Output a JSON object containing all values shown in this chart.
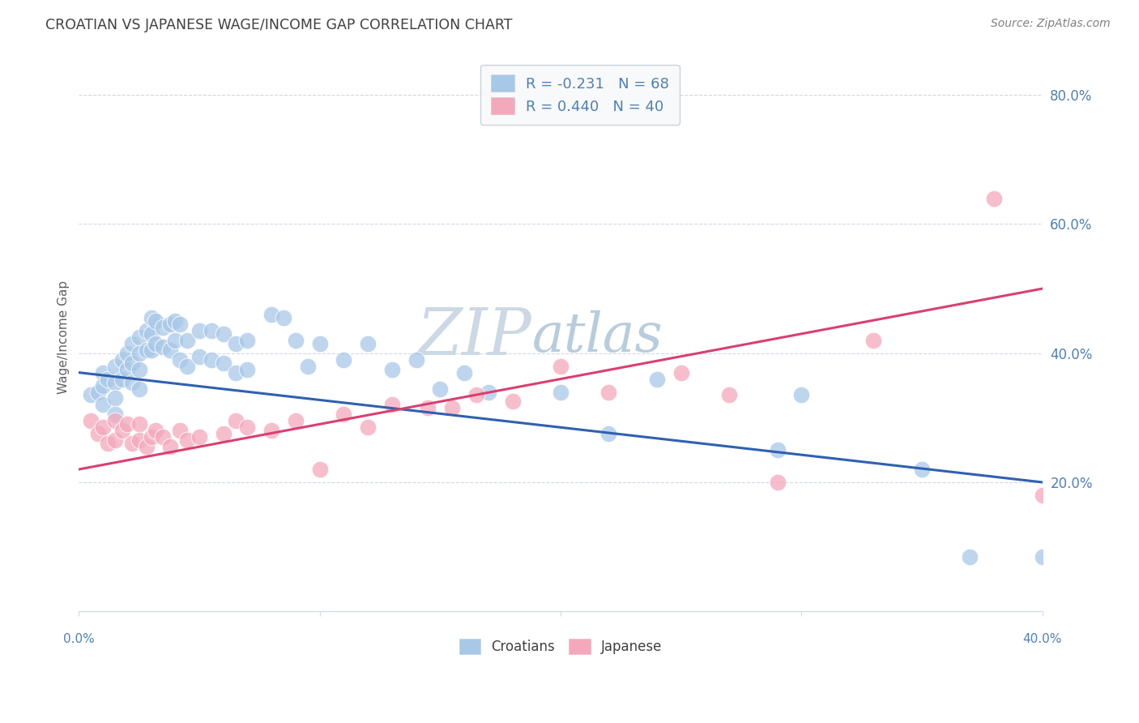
{
  "title": "CROATIAN VS JAPANESE WAGE/INCOME GAP CORRELATION CHART",
  "source": "Source: ZipAtlas.com",
  "ylabel": "Wage/Income Gap",
  "xmin": 0.0,
  "xmax": 0.4,
  "ymin": 0.0,
  "ymax": 0.85,
  "yticks": [
    0.2,
    0.4,
    0.6,
    0.8
  ],
  "ytick_labels": [
    "20.0%",
    "40.0%",
    "60.0%",
    "80.0%"
  ],
  "xtick_positions": [
    0.0,
    0.1,
    0.2,
    0.3,
    0.4
  ],
  "croatians_color": "#a8c8e8",
  "japanese_color": "#f4a8bc",
  "blue_line_color": "#3060b0",
  "pink_line_color": "#d84070",
  "watermark_text": "ZIPatlas",
  "watermark_color": "#dce8f0",
  "title_color": "#404040",
  "axis_label_color": "#5080b0",
  "grid_color": "#d0d8e8",
  "source_color": "#808080",
  "background_color": "#ffffff",
  "blue_line_y0": 0.37,
  "blue_line_y1": 0.2,
  "pink_line_y0": 0.22,
  "pink_line_y1": 0.5,
  "croatians_x": [
    0.005,
    0.008,
    0.01,
    0.01,
    0.01,
    0.012,
    0.015,
    0.015,
    0.015,
    0.015,
    0.018,
    0.018,
    0.02,
    0.02,
    0.022,
    0.022,
    0.022,
    0.025,
    0.025,
    0.025,
    0.025,
    0.028,
    0.028,
    0.03,
    0.03,
    0.03,
    0.032,
    0.032,
    0.035,
    0.035,
    0.038,
    0.038,
    0.04,
    0.04,
    0.042,
    0.042,
    0.045,
    0.045,
    0.05,
    0.05,
    0.055,
    0.055,
    0.06,
    0.06,
    0.065,
    0.065,
    0.07,
    0.07,
    0.08,
    0.085,
    0.09,
    0.095,
    0.1,
    0.11,
    0.12,
    0.13,
    0.14,
    0.15,
    0.16,
    0.17,
    0.2,
    0.22,
    0.24,
    0.29,
    0.3,
    0.35,
    0.37,
    0.4
  ],
  "croatians_y": [
    0.335,
    0.34,
    0.37,
    0.35,
    0.32,
    0.36,
    0.38,
    0.355,
    0.33,
    0.305,
    0.39,
    0.36,
    0.4,
    0.375,
    0.415,
    0.385,
    0.355,
    0.425,
    0.4,
    0.375,
    0.345,
    0.435,
    0.405,
    0.455,
    0.43,
    0.405,
    0.45,
    0.415,
    0.44,
    0.41,
    0.445,
    0.405,
    0.45,
    0.42,
    0.445,
    0.39,
    0.42,
    0.38,
    0.435,
    0.395,
    0.435,
    0.39,
    0.43,
    0.385,
    0.415,
    0.37,
    0.42,
    0.375,
    0.46,
    0.455,
    0.42,
    0.38,
    0.415,
    0.39,
    0.415,
    0.375,
    0.39,
    0.345,
    0.37,
    0.34,
    0.34,
    0.275,
    0.36,
    0.25,
    0.335,
    0.22,
    0.085,
    0.085
  ],
  "japanese_x": [
    0.005,
    0.008,
    0.01,
    0.012,
    0.015,
    0.015,
    0.018,
    0.02,
    0.022,
    0.025,
    0.025,
    0.028,
    0.03,
    0.032,
    0.035,
    0.038,
    0.042,
    0.045,
    0.05,
    0.06,
    0.065,
    0.07,
    0.08,
    0.09,
    0.1,
    0.11,
    0.12,
    0.13,
    0.145,
    0.155,
    0.165,
    0.18,
    0.2,
    0.22,
    0.25,
    0.27,
    0.29,
    0.33,
    0.38,
    0.4
  ],
  "japanese_y": [
    0.295,
    0.275,
    0.285,
    0.26,
    0.295,
    0.265,
    0.28,
    0.29,
    0.26,
    0.29,
    0.265,
    0.255,
    0.27,
    0.28,
    0.27,
    0.255,
    0.28,
    0.265,
    0.27,
    0.275,
    0.295,
    0.285,
    0.28,
    0.295,
    0.22,
    0.305,
    0.285,
    0.32,
    0.315,
    0.315,
    0.335,
    0.325,
    0.38,
    0.34,
    0.37,
    0.335,
    0.2,
    0.42,
    0.64,
    0.18
  ]
}
